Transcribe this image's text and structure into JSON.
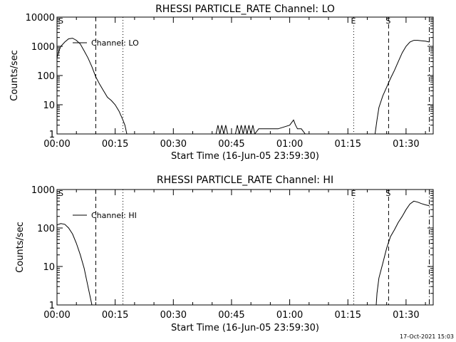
{
  "timestamp": "17-Oct-2021 15:03",
  "chart_data": [
    {
      "type": "line",
      "title": "RHESSI PARTICLE_RATE Channel: LO",
      "xlabel": "Start Time (16-Jun-05 23:59:30)",
      "ylabel": "Counts/sec",
      "y_scale": "log",
      "ylim": [
        1,
        10000
      ],
      "y_tick_labels": [
        "10000",
        "1000",
        "100",
        "10",
        "1"
      ],
      "xlim": [
        0,
        97
      ],
      "x_tick_labels": [
        "00:00",
        "00:15",
        "00:30",
        "00:45",
        "01:00",
        "01:15",
        "01:30"
      ],
      "legend": "top-left",
      "series": [
        {
          "name": "Channel: LO",
          "x": [
            0,
            0.5,
            1,
            2,
            3,
            4,
            5,
            6,
            7,
            8,
            9,
            10,
            11,
            12,
            13,
            14,
            15,
            16,
            17,
            17.5,
            18
          ],
          "y": [
            400,
            700,
            1000,
            1400,
            1800,
            1900,
            1600,
            1200,
            700,
            400,
            200,
            90,
            50,
            30,
            18,
            14,
            10,
            6,
            3,
            2,
            1
          ]
        },
        {
          "name": "Channel: LO",
          "x": [
            41,
            41.5,
            42,
            42.5,
            43,
            43.5,
            44,
            46,
            46.5,
            47,
            47.5,
            48,
            48.5,
            49,
            49.5,
            50,
            50.5,
            51,
            52,
            54,
            57,
            60,
            61,
            61.5,
            62,
            63,
            64
          ],
          "y": [
            1,
            2,
            1,
            2,
            1,
            2,
            1,
            1,
            2,
            1,
            2,
            1,
            2,
            1,
            2,
            1,
            2,
            1,
            1.5,
            1.5,
            1.5,
            2,
            3,
            2,
            1.5,
            1.5,
            1
          ]
        },
        {
          "name": "Channel: LO",
          "x": [
            82,
            82.5,
            83,
            84,
            85,
            86,
            87,
            88,
            89,
            90,
            91,
            92,
            93,
            94,
            95,
            96
          ],
          "y": [
            1,
            3,
            8,
            20,
            40,
            80,
            150,
            300,
            600,
            1000,
            1400,
            1600,
            1600,
            1550,
            1500,
            1400
          ]
        }
      ],
      "markers": [
        {
          "type": "dashed",
          "x": 10
        },
        {
          "type": "dotted",
          "x": 17
        },
        {
          "type": "dotted",
          "x": 76.5,
          "label": "E"
        },
        {
          "type": "dashed",
          "x": 85.5,
          "label": "S"
        },
        {
          "type": "dash-dot",
          "x": 96
        }
      ],
      "corner_label": "S"
    },
    {
      "type": "line",
      "title": "RHESSI PARTICLE_RATE Channel: HI",
      "xlabel": "Start Time (16-Jun-05 23:59:30)",
      "ylabel": "Counts/sec",
      "y_scale": "log",
      "ylim": [
        1,
        1000
      ],
      "y_tick_labels": [
        "1000",
        "100",
        "10",
        "1"
      ],
      "xlim": [
        0,
        97
      ],
      "x_tick_labels": [
        "00:00",
        "00:15",
        "00:30",
        "00:45",
        "01:00",
        "01:15",
        "01:30"
      ],
      "legend": "top-left",
      "series": [
        {
          "name": "Channel: HI",
          "x": [
            0,
            1,
            2,
            3,
            4,
            5,
            6,
            7,
            8,
            9
          ],
          "y": [
            120,
            130,
            125,
            100,
            70,
            40,
            20,
            9,
            3,
            1
          ]
        },
        {
          "name": "Channel: HI",
          "x": [
            82.3,
            82.5,
            83,
            84,
            85,
            86,
            87,
            88,
            89,
            90,
            91,
            92,
            93,
            94,
            95,
            96
          ],
          "y": [
            1,
            2,
            5,
            12,
            30,
            60,
            90,
            140,
            200,
            300,
            420,
            500,
            470,
            430,
            400,
            380
          ]
        }
      ],
      "markers": [
        {
          "type": "dashed",
          "x": 10
        },
        {
          "type": "dotted",
          "x": 17
        },
        {
          "type": "dotted",
          "x": 76.5,
          "label": "E"
        },
        {
          "type": "dashed",
          "x": 85.5,
          "label": "S"
        },
        {
          "type": "dash-dot",
          "x": 96
        }
      ],
      "corner_label": "S"
    }
  ]
}
